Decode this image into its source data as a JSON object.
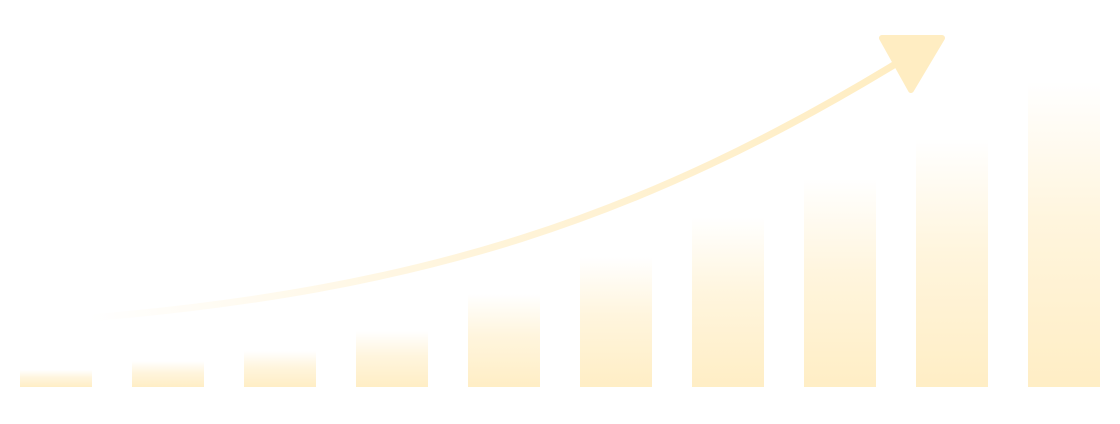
{
  "chart_data": {
    "type": "bar",
    "values": [
      17,
      26,
      36,
      56,
      93,
      130,
      170,
      208,
      248,
      305
    ],
    "ylim": [
      0,
      387
    ],
    "grid": false,
    "trend_arrow": true
  },
  "colors": {
    "bar": "#ffedc2",
    "arrow": "#ffedc2"
  }
}
